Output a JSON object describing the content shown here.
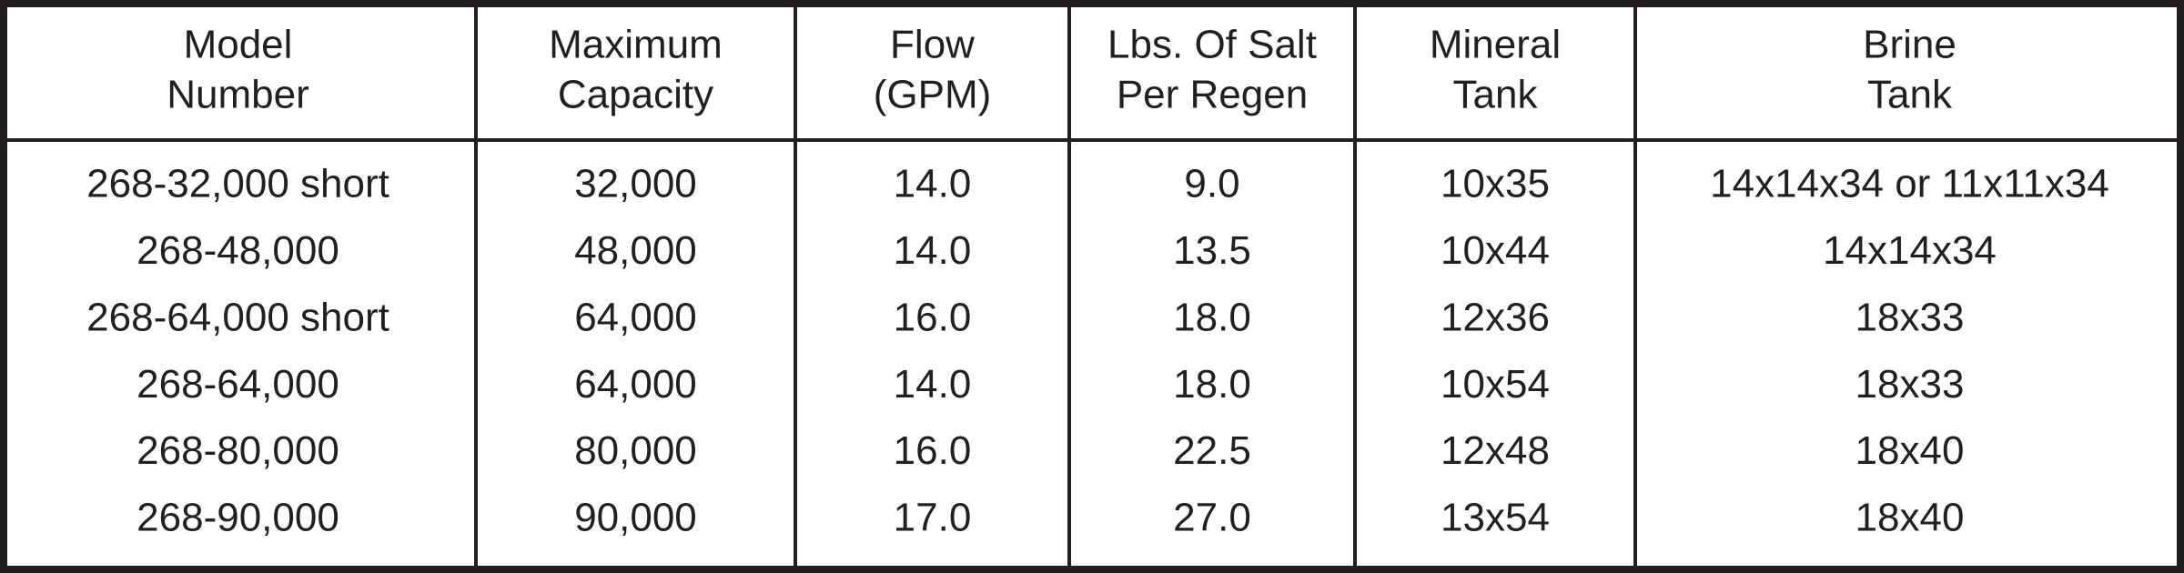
{
  "table": {
    "header": [
      [
        "Model",
        "Number"
      ],
      [
        "Maximum",
        "Capacity"
      ],
      [
        "Flow",
        "(GPM)"
      ],
      [
        "Lbs. Of Salt",
        "Per Regen"
      ],
      [
        "Mineral",
        "Tank"
      ],
      [
        "Brine",
        "Tank"
      ]
    ],
    "rows": [
      [
        "268-32,000 short",
        "32,000",
        "14.0",
        "9.0",
        "10x35",
        "14x14x34 or 11x11x34"
      ],
      [
        "268-48,000",
        "48,000",
        "14.0",
        "13.5",
        "10x44",
        "14x14x34"
      ],
      [
        "268-64,000 short",
        "64,000",
        "16.0",
        "18.0",
        "12x36",
        "18x33"
      ],
      [
        "268-64,000",
        "64,000",
        "14.0",
        "18.0",
        "10x54",
        "18x33"
      ],
      [
        "268-80,000",
        "80,000",
        "16.0",
        "22.5",
        "12x48",
        "18x40"
      ],
      [
        "268-90,000",
        "90,000",
        "17.0",
        "27.0",
        "13x54",
        "18x40"
      ]
    ]
  }
}
